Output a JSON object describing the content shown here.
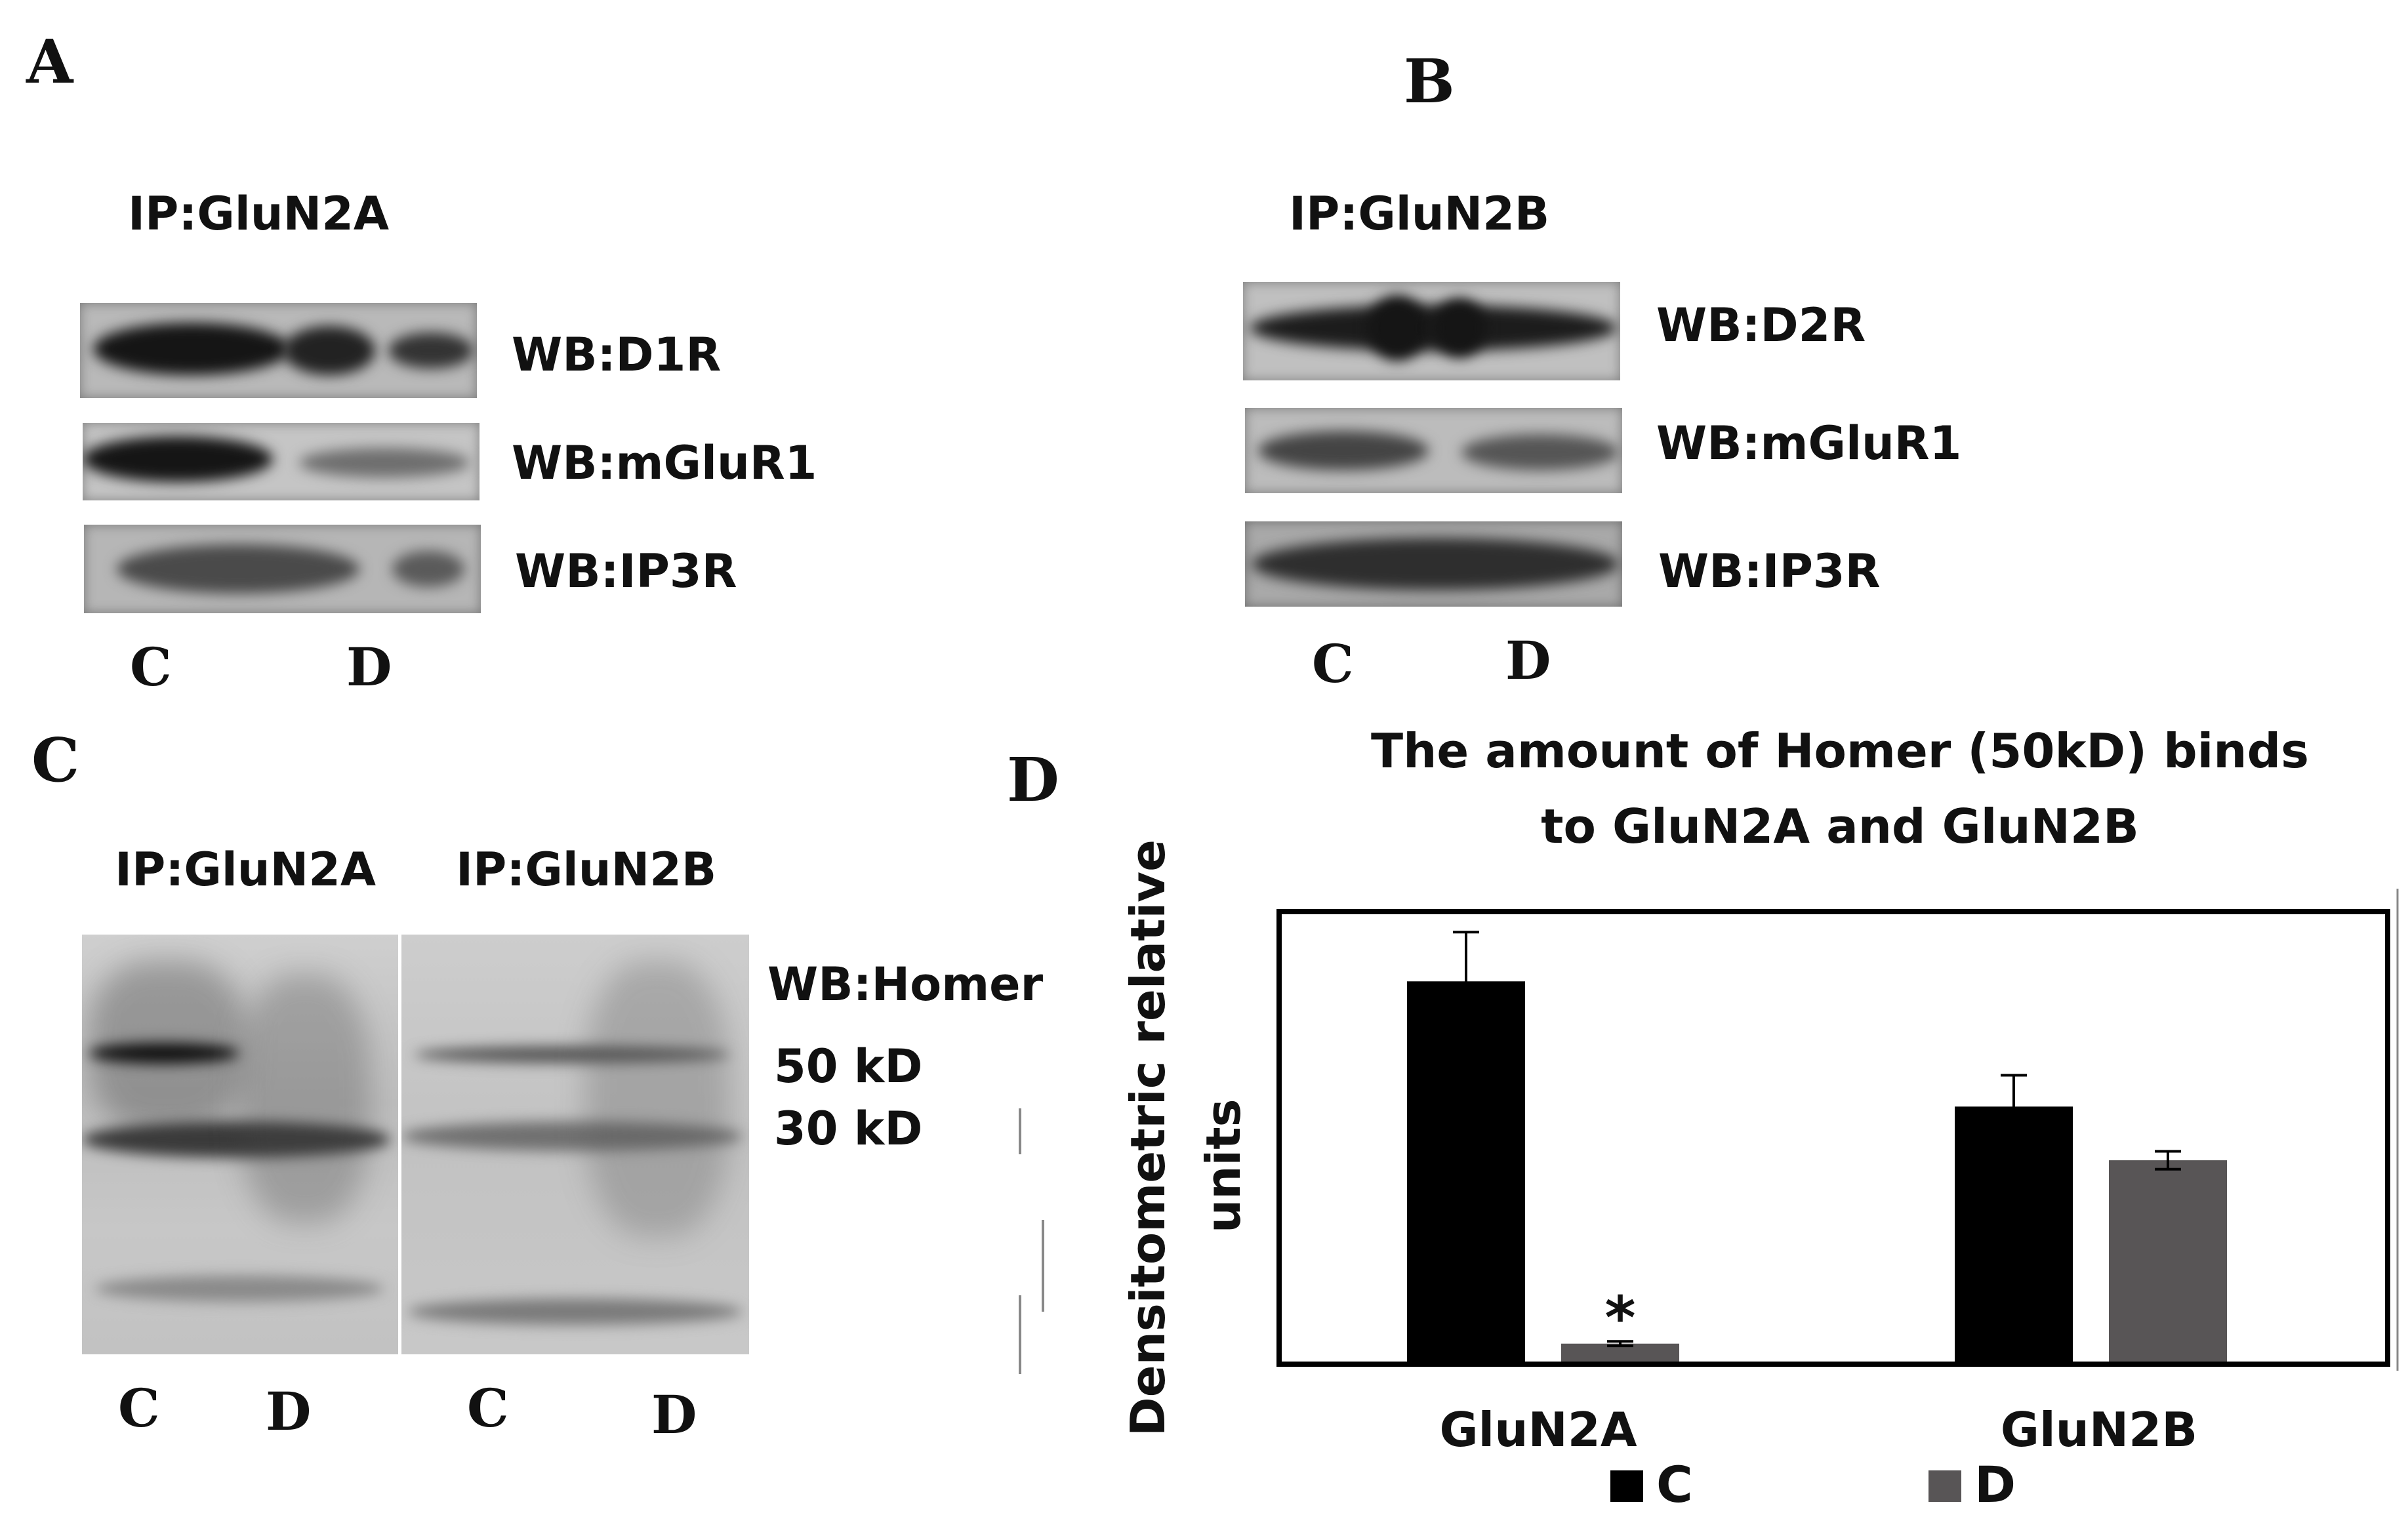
{
  "panels": {
    "A": {
      "letter": "A",
      "ip_label": "IP:GluN2A",
      "blots": [
        "WB:D1R",
        "WB:mGluR1",
        "WB:IP3R"
      ],
      "lanes": [
        "C",
        "D"
      ]
    },
    "B": {
      "letter": "B",
      "ip_label": "IP:GluN2B",
      "blots": [
        "WB:D2R",
        "WB:mGluR1",
        "WB:IP3R"
      ],
      "lanes": [
        "C",
        "D"
      ]
    },
    "C": {
      "letter": "C",
      "ip_left": "IP:GluN2A",
      "ip_right": "IP:GluN2B",
      "wb_label": "WB:Homer",
      "markers": [
        "50 kD",
        "30 kD"
      ],
      "lanes": [
        "C",
        "D",
        "C",
        "D"
      ]
    },
    "D": {
      "letter": "D"
    }
  },
  "chart_data": {
    "type": "bar",
    "title_line1": "The amount of Homer (50kD) binds",
    "title_line2": "to GluN2A and GluN2B",
    "ylabel_line1": "Densitometric relative",
    "ylabel_line2": "units",
    "categories": [
      "GluN2A",
      "GluN2B"
    ],
    "ylim": [
      0,
      1.0
    ],
    "series": [
      {
        "name": "C",
        "color": "#000000",
        "values": [
          0.85,
          0.57
        ],
        "errors": [
          0.11,
          0.07
        ]
      },
      {
        "name": "D",
        "color": "#585556",
        "values": [
          0.04,
          0.45
        ],
        "errors": [
          0.005,
          0.02
        ]
      }
    ],
    "annotations": [
      {
        "text": "*",
        "category": "GluN2A",
        "series": "D"
      }
    ],
    "legend": "bottom",
    "grid": false
  }
}
